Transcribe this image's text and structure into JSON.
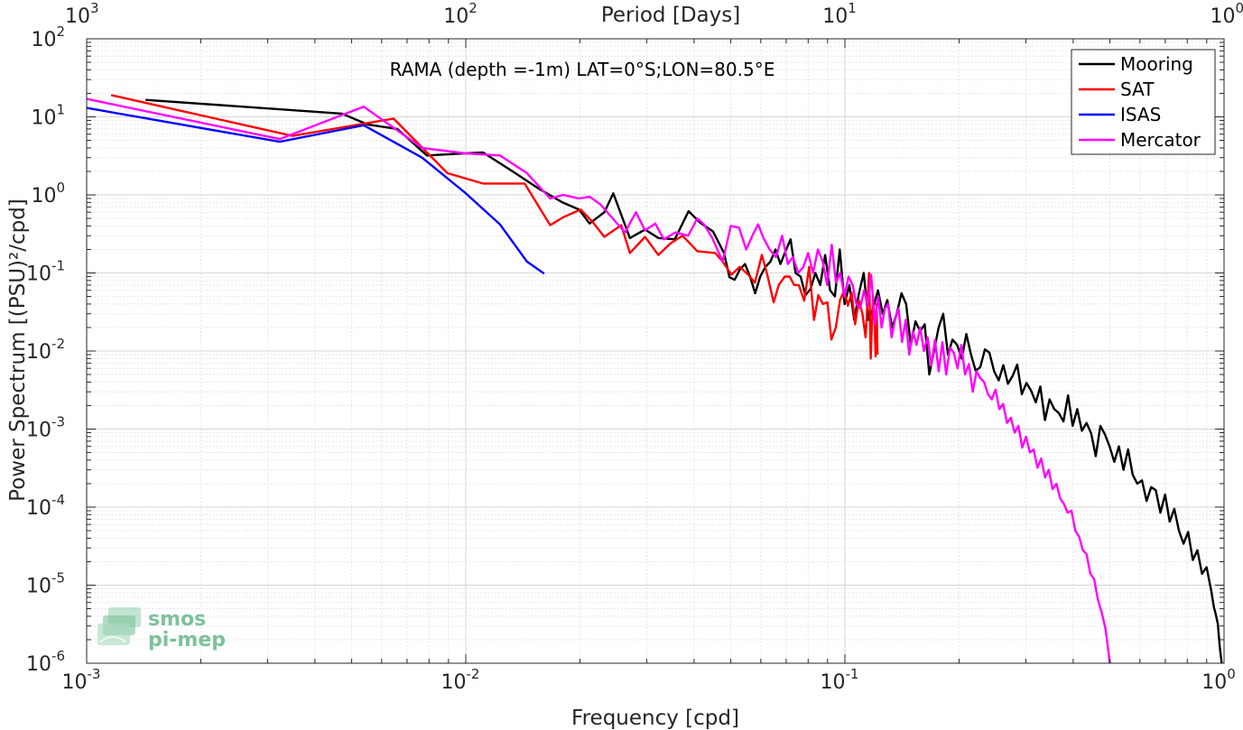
{
  "chart_data": {
    "type": "line",
    "title": "",
    "annotation": "RAMA (depth =-1m) LAT=0°S;LON=80.5°E",
    "xlabel": "Frequency [cpd]",
    "ylabel": "Power Spectrum [(PSU)²/cpd]",
    "top_xlabel": "Period [Days]",
    "xscale": "log",
    "yscale": "log",
    "xlim": [
      0.001,
      1
    ],
    "ylim": [
      1e-06,
      100
    ],
    "grid": true,
    "legend_position": "top-right",
    "x_ticks": [
      0.001,
      0.01,
      0.1,
      1
    ],
    "x_tick_labels": [
      {
        "base": "10",
        "exp": "-3"
      },
      {
        "base": "10",
        "exp": "-2"
      },
      {
        "base": "10",
        "exp": "-1"
      },
      {
        "base": "10",
        "exp": "0"
      }
    ],
    "top_ticks": [
      1000,
      100,
      10,
      1
    ],
    "top_tick_labels": [
      {
        "base": "10",
        "exp": "3"
      },
      {
        "base": "10",
        "exp": "2"
      },
      {
        "base": "10",
        "exp": "1"
      },
      {
        "base": "10",
        "exp": "0"
      }
    ],
    "y_ticks": [
      1e-06,
      1e-05,
      0.0001,
      0.001,
      0.01,
      0.1,
      1,
      10,
      100
    ],
    "y_tick_labels": [
      {
        "base": "10",
        "exp": "-6"
      },
      {
        "base": "10",
        "exp": "-5"
      },
      {
        "base": "10",
        "exp": "-4"
      },
      {
        "base": "10",
        "exp": "-3"
      },
      {
        "base": "10",
        "exp": "-2"
      },
      {
        "base": "10",
        "exp": "-1"
      },
      {
        "base": "10",
        "exp": "0"
      },
      {
        "base": "10",
        "exp": "1"
      },
      {
        "base": "10",
        "exp": "2"
      }
    ],
    "series": [
      {
        "name": "Mooring",
        "color": "#000000",
        "x": [
          0.00143,
          0.00471,
          0.0055,
          0.0066,
          0.0079,
          0.0111,
          0.0133,
          0.0156,
          0.018,
          0.0199,
          0.0212,
          0.0232,
          0.0245,
          0.0271,
          0.0297,
          0.0322,
          0.0356,
          0.0387,
          0.0415,
          0.0449,
          0.048,
          0.0496,
          0.0512,
          0.0528,
          0.0545,
          0.0562,
          0.058,
          0.0598,
          0.0617,
          0.0636,
          0.0656,
          0.0676,
          0.0697,
          0.0719,
          0.0741,
          0.0764,
          0.0787,
          0.0811,
          0.0836,
          0.0861,
          0.0887,
          0.0914,
          0.0941,
          0.0969,
          0.0998,
          0.1028,
          0.1058,
          0.1089,
          0.1121,
          0.1154,
          0.1188,
          0.1222,
          0.1258,
          0.1294,
          0.1332,
          0.137,
          0.141,
          0.145,
          0.1492,
          0.1535,
          0.1579,
          0.1624,
          0.167,
          0.1718,
          0.1767,
          0.1817,
          0.1869,
          0.1922,
          0.1977,
          0.2033,
          0.2091,
          0.2151,
          0.2212,
          0.2275,
          0.234,
          0.2406,
          0.2475,
          0.2545,
          0.2618,
          0.2692,
          0.2769,
          0.2848,
          0.2929,
          0.3012,
          0.3098,
          0.3186,
          0.3277,
          0.337,
          0.3466,
          0.3565,
          0.3666,
          0.377,
          0.3877,
          0.3988,
          0.4101,
          0.4218,
          0.4338,
          0.4461,
          0.4588,
          0.4719,
          0.4853,
          0.4991,
          0.5133,
          0.5279,
          0.5429,
          0.5584,
          0.5742,
          0.5906,
          0.6074,
          0.6247,
          0.6425,
          0.6607,
          0.6795,
          0.6989,
          0.7188,
          0.7392,
          0.7602,
          0.7819,
          0.8041,
          0.827,
          0.8505,
          0.8747,
          0.8996,
          0.9252,
          0.9405,
          0.9515,
          0.9629,
          0.9744,
          0.986
        ],
        "y": [
          16.5,
          11,
          8,
          7,
          3.2,
          3.5,
          2.0,
          1.2,
          0.8,
          0.65,
          0.43,
          0.6,
          1.05,
          0.28,
          0.36,
          0.28,
          0.27,
          0.62,
          0.44,
          0.34,
          0.18,
          0.088,
          0.082,
          0.11,
          0.13,
          0.09,
          0.055,
          0.09,
          0.12,
          0.14,
          0.2,
          0.13,
          0.19,
          0.27,
          0.1,
          0.09,
          0.052,
          0.062,
          0.1,
          0.07,
          0.17,
          0.06,
          0.05,
          0.2,
          0.04,
          0.07,
          0.025,
          0.055,
          0.1,
          0.025,
          0.036,
          0.06,
          0.03,
          0.045,
          0.02,
          0.03,
          0.055,
          0.04,
          0.012,
          0.024,
          0.018,
          0.022,
          0.005,
          0.01,
          0.02,
          0.03,
          0.009,
          0.014,
          0.012,
          0.008,
          0.0165,
          0.009,
          0.0056,
          0.0062,
          0.0105,
          0.0095,
          0.0055,
          0.0042,
          0.0066,
          0.0038,
          0.0048,
          0.0067,
          0.0028,
          0.0039,
          0.0031,
          0.0022,
          0.0035,
          0.0013,
          0.0024,
          0.0018,
          0.0016,
          0.00125,
          0.0027,
          0.0011,
          0.0018,
          0.00095,
          0.0012,
          0.00088,
          0.00045,
          0.0011,
          0.00085,
          0.0006,
          0.00038,
          0.0006,
          0.0003,
          0.00055,
          0.00026,
          0.0002,
          0.00022,
          0.00012,
          0.00018,
          0.000165,
          8.5e-05,
          0.000145,
          6.5e-05,
          9.5e-05,
          5e-05,
          3.4e-05,
          4.8e-05,
          2.1e-05,
          2.8e-05,
          1.4e-05,
          1.7e-05,
          8.5e-06,
          5.2e-06,
          4.2e-06,
          3.2e-06,
          1.6e-06,
          1e-06
        ]
      },
      {
        "name": "SAT",
        "color": "#ff0000",
        "x": [
          0.00116,
          0.00349,
          0.00645,
          0.0079,
          0.00894,
          0.0111,
          0.0143,
          0.0167,
          0.0181,
          0.0201,
          0.0216,
          0.0232,
          0.0257,
          0.0271,
          0.0297,
          0.0322,
          0.0347,
          0.0373,
          0.0408,
          0.0455,
          0.0476,
          0.0502,
          0.0528,
          0.0556,
          0.0579,
          0.0604,
          0.0624,
          0.0649,
          0.0669,
          0.0694,
          0.0715,
          0.0735,
          0.0756,
          0.0781,
          0.0805,
          0.0829,
          0.0851,
          0.0875,
          0.0899,
          0.0921,
          0.0946,
          0.0971,
          0.0996,
          0.1018,
          0.1042,
          0.1064,
          0.1088,
          0.1112,
          0.1134,
          0.1158,
          0.117,
          0.1186,
          0.1197,
          0.1205,
          0.1212,
          0.1219
        ],
        "y": [
          19,
          5.7,
          9.5,
          3.5,
          1.9,
          1.4,
          1.4,
          0.41,
          0.52,
          0.65,
          0.45,
          0.29,
          0.41,
          0.18,
          0.29,
          0.17,
          0.24,
          0.3,
          0.19,
          0.18,
          0.14,
          0.095,
          0.12,
          0.095,
          0.075,
          0.17,
          0.095,
          0.042,
          0.07,
          0.09,
          0.09,
          0.07,
          0.07,
          0.044,
          0.12,
          0.025,
          0.052,
          0.04,
          0.042,
          0.014,
          0.02,
          0.045,
          0.06,
          0.038,
          0.056,
          0.022,
          0.045,
          0.03,
          0.015,
          0.1,
          0.008,
          0.05,
          0.025,
          0.0085,
          0.04,
          0.009
        ]
      },
      {
        "name": "ISAS",
        "color": "#0000ff",
        "x": [
          0.001,
          0.00323,
          0.00538,
          0.00767,
          0.01,
          0.0123,
          0.0145,
          0.0161
        ],
        "y": [
          13,
          4.8,
          7.8,
          3.0,
          1.05,
          0.42,
          0.14,
          0.098
        ]
      },
      {
        "name": "Mercator",
        "color": "#ff00ff",
        "x": [
          0.001,
          0.00323,
          0.00538,
          0.00767,
          0.01,
          0.0123,
          0.0145,
          0.0167,
          0.0181,
          0.0199,
          0.0212,
          0.0227,
          0.0244,
          0.0263,
          0.0281,
          0.0297,
          0.0316,
          0.0333,
          0.0357,
          0.0386,
          0.0408,
          0.0425,
          0.0447,
          0.0476,
          0.05,
          0.0526,
          0.0549,
          0.057,
          0.059,
          0.061,
          0.0633,
          0.0658,
          0.0683,
          0.0707,
          0.0729,
          0.0753,
          0.0777,
          0.08,
          0.0824,
          0.0849,
          0.0874,
          0.0898,
          0.0923,
          0.0947,
          0.0972,
          0.0997,
          0.1022,
          0.1048,
          0.1072,
          0.1097,
          0.1123,
          0.1148,
          0.1173,
          0.1199,
          0.1224,
          0.1249,
          0.1275,
          0.1301,
          0.1328,
          0.1356,
          0.1385,
          0.1415,
          0.1446,
          0.1478,
          0.1511,
          0.1545,
          0.158,
          0.1616,
          0.1652,
          0.169,
          0.1728,
          0.1768,
          0.1808,
          0.185,
          0.1893,
          0.1937,
          0.1982,
          0.2028,
          0.2075,
          0.2124,
          0.2173,
          0.2224,
          0.2276,
          0.2329,
          0.2384,
          0.244,
          0.2497,
          0.2555,
          0.2615,
          0.2677,
          0.2739,
          0.2803,
          0.2869,
          0.2936,
          0.3005,
          0.3075,
          0.3147,
          0.322,
          0.3295,
          0.3372,
          0.345,
          0.353,
          0.3612,
          0.3696,
          0.3782,
          0.387,
          0.396,
          0.4052,
          0.4146,
          0.4242,
          0.434,
          0.4441,
          0.4543,
          0.4648,
          0.4755,
          0.4865,
          0.4925,
          0.4985,
          0.5
        ],
        "y": [
          17,
          5.2,
          13.5,
          4.0,
          3.4,
          3.2,
          1.9,
          0.9,
          1.0,
          0.9,
          0.95,
          0.75,
          0.5,
          0.33,
          0.6,
          0.35,
          0.43,
          0.27,
          0.33,
          0.3,
          0.5,
          0.42,
          0.28,
          0.14,
          0.4,
          0.38,
          0.2,
          0.3,
          0.42,
          0.28,
          0.2,
          0.16,
          0.3,
          0.13,
          0.16,
          0.1,
          0.12,
          0.18,
          0.1,
          0.2,
          0.14,
          0.07,
          0.23,
          0.075,
          0.1,
          0.05,
          0.09,
          0.07,
          0.04,
          0.035,
          0.06,
          0.038,
          0.095,
          0.022,
          0.05,
          0.02,
          0.035,
          0.04,
          0.015,
          0.025,
          0.035,
          0.013,
          0.025,
          0.009,
          0.018,
          0.012,
          0.02,
          0.01,
          0.015,
          0.0065,
          0.014,
          0.0055,
          0.013,
          0.005,
          0.011,
          0.0095,
          0.006,
          0.012,
          0.005,
          0.0068,
          0.003,
          0.0055,
          0.0045,
          0.004,
          0.0028,
          0.0024,
          0.0032,
          0.0018,
          0.0021,
          0.0012,
          0.0014,
          0.0009,
          0.0011,
          0.00058,
          0.0008,
          0.0005,
          0.00055,
          0.00032,
          0.00042,
          0.00024,
          0.0003,
          0.00017,
          0.0002,
          0.00013,
          0.00011,
          8.5e-05,
          9e-05,
          5e-05,
          4.2e-05,
          2.8e-05,
          2.5e-05,
          1.4e-05,
          1.2e-05,
          6.5e-06,
          4.5e-06,
          2.8e-06,
          1.8e-06,
          1.1e-06,
          1e-06
        ]
      }
    ],
    "watermark": {
      "line1": "smos",
      "line2": "pi-mep"
    }
  }
}
